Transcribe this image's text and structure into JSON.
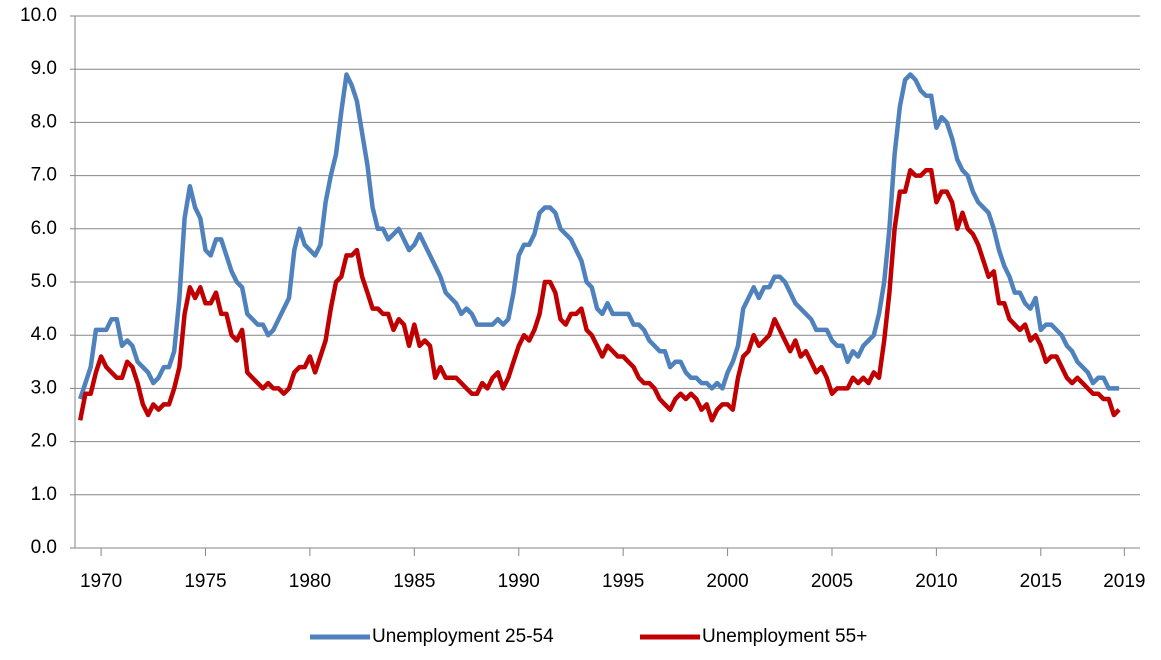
{
  "chart_data": {
    "type": "line",
    "x": [
      1969,
      1969.25,
      1969.5,
      1969.75,
      1970,
      1970.25,
      1970.5,
      1970.75,
      1971,
      1971.25,
      1971.5,
      1971.75,
      1972,
      1972.25,
      1972.5,
      1972.75,
      1973,
      1973.25,
      1973.5,
      1973.75,
      1974,
      1974.25,
      1974.5,
      1974.75,
      1975,
      1975.25,
      1975.5,
      1975.75,
      1976,
      1976.25,
      1976.5,
      1976.75,
      1977,
      1977.25,
      1977.5,
      1977.75,
      1978,
      1978.25,
      1978.5,
      1978.75,
      1979,
      1979.25,
      1979.5,
      1979.75,
      1980,
      1980.25,
      1980.5,
      1980.75,
      1981,
      1981.25,
      1981.5,
      1981.75,
      1982,
      1982.25,
      1982.5,
      1982.75,
      1983,
      1983.25,
      1983.5,
      1983.75,
      1984,
      1984.25,
      1984.5,
      1984.75,
      1985,
      1985.25,
      1985.5,
      1985.75,
      1986,
      1986.25,
      1986.5,
      1986.75,
      1987,
      1987.25,
      1987.5,
      1987.75,
      1988,
      1988.25,
      1988.5,
      1988.75,
      1989,
      1989.25,
      1989.5,
      1989.75,
      1990,
      1990.25,
      1990.5,
      1990.75,
      1991,
      1991.25,
      1991.5,
      1991.75,
      1992,
      1992.25,
      1992.5,
      1992.75,
      1993,
      1993.25,
      1993.5,
      1993.75,
      1994,
      1994.25,
      1994.5,
      1994.75,
      1995,
      1995.25,
      1995.5,
      1995.75,
      1996,
      1996.25,
      1996.5,
      1996.75,
      1997,
      1997.25,
      1997.5,
      1997.75,
      1998,
      1998.25,
      1998.5,
      1998.75,
      1999,
      1999.25,
      1999.5,
      1999.75,
      2000,
      2000.25,
      2000.5,
      2000.75,
      2001,
      2001.25,
      2001.5,
      2001.75,
      2002,
      2002.25,
      2002.5,
      2002.75,
      2003,
      2003.25,
      2003.5,
      2003.75,
      2004,
      2004.25,
      2004.5,
      2004.75,
      2005,
      2005.25,
      2005.5,
      2005.75,
      2006,
      2006.25,
      2006.5,
      2006.75,
      2007,
      2007.25,
      2007.5,
      2007.75,
      2008,
      2008.25,
      2008.5,
      2008.75,
      2009,
      2009.25,
      2009.5,
      2009.75,
      2010,
      2010.25,
      2010.5,
      2010.75,
      2011,
      2011.25,
      2011.5,
      2011.75,
      2012,
      2012.25,
      2012.5,
      2012.75,
      2013,
      2013.25,
      2013.5,
      2013.75,
      2014,
      2014.25,
      2014.5,
      2014.75,
      2015,
      2015.25,
      2015.5,
      2015.75,
      2016,
      2016.25,
      2016.5,
      2016.75,
      2017,
      2017.25,
      2017.5,
      2017.75,
      2018,
      2018.25,
      2018.5,
      2018.75
    ],
    "series": [
      {
        "name": "Unemployment 25-54",
        "color": "#4f81bd",
        "values": [
          2.8,
          3.1,
          3.4,
          4.1,
          4.1,
          4.1,
          4.3,
          4.3,
          3.8,
          3.9,
          3.8,
          3.5,
          3.4,
          3.3,
          3.1,
          3.2,
          3.4,
          3.4,
          3.7,
          4.7,
          6.2,
          6.8,
          6.4,
          6.2,
          5.6,
          5.5,
          5.8,
          5.8,
          5.5,
          5.2,
          5.0,
          4.9,
          4.4,
          4.3,
          4.2,
          4.2,
          4.0,
          4.1,
          4.3,
          4.5,
          4.7,
          5.6,
          6.0,
          5.7,
          5.6,
          5.5,
          5.7,
          6.5,
          7.0,
          7.4,
          8.2,
          8.9,
          8.7,
          8.4,
          7.8,
          7.2,
          6.4,
          6.0,
          6.0,
          5.8,
          5.9,
          6.0,
          5.8,
          5.6,
          5.7,
          5.9,
          5.7,
          5.5,
          5.3,
          5.1,
          4.8,
          4.7,
          4.6,
          4.4,
          4.5,
          4.4,
          4.2,
          4.2,
          4.2,
          4.2,
          4.3,
          4.2,
          4.3,
          4.8,
          5.5,
          5.7,
          5.7,
          5.9,
          6.3,
          6.4,
          6.4,
          6.3,
          6.0,
          5.9,
          5.8,
          5.6,
          5.4,
          5.0,
          4.9,
          4.5,
          4.4,
          4.6,
          4.4,
          4.4,
          4.4,
          4.4,
          4.2,
          4.2,
          4.1,
          3.9,
          3.8,
          3.7,
          3.7,
          3.4,
          3.5,
          3.5,
          3.3,
          3.2,
          3.2,
          3.1,
          3.1,
          3.0,
          3.1,
          3.0,
          3.3,
          3.5,
          3.8,
          4.5,
          4.7,
          4.9,
          4.7,
          4.9,
          4.9,
          5.1,
          5.1,
          5.0,
          4.8,
          4.6,
          4.5,
          4.4,
          4.3,
          4.1,
          4.1,
          4.1,
          3.9,
          3.8,
          3.8,
          3.5,
          3.7,
          3.6,
          3.8,
          3.9,
          4.0,
          4.4,
          5.0,
          6.0,
          7.4,
          8.3,
          8.8,
          8.9,
          8.8,
          8.6,
          8.5,
          8.5,
          7.9,
          8.1,
          8.0,
          7.7,
          7.3,
          7.1,
          7.0,
          6.7,
          6.5,
          6.4,
          6.3,
          6.0,
          5.6,
          5.3,
          5.1,
          4.8,
          4.8,
          4.6,
          4.5,
          4.7,
          4.1,
          4.2,
          4.2,
          4.1,
          4.0,
          3.8,
          3.7,
          3.5,
          3.4,
          3.3,
          3.1,
          3.2,
          3.2,
          3.0,
          3.0,
          3.0
        ]
      },
      {
        "name": "Unemployment 55+",
        "color": "#c00000",
        "values": [
          2.4,
          2.9,
          2.9,
          3.3,
          3.6,
          3.4,
          3.3,
          3.2,
          3.2,
          3.5,
          3.4,
          3.1,
          2.7,
          2.5,
          2.7,
          2.6,
          2.7,
          2.7,
          3.0,
          3.4,
          4.4,
          4.9,
          4.7,
          4.9,
          4.6,
          4.6,
          4.8,
          4.4,
          4.4,
          4.0,
          3.9,
          4.1,
          3.3,
          3.2,
          3.1,
          3.0,
          3.1,
          3.0,
          3.0,
          2.9,
          3.0,
          3.3,
          3.4,
          3.4,
          3.6,
          3.3,
          3.6,
          3.9,
          4.5,
          5.0,
          5.1,
          5.5,
          5.5,
          5.6,
          5.1,
          4.8,
          4.5,
          4.5,
          4.4,
          4.4,
          4.1,
          4.3,
          4.2,
          3.8,
          4.2,
          3.8,
          3.9,
          3.8,
          3.2,
          3.4,
          3.2,
          3.2,
          3.2,
          3.1,
          3.0,
          2.9,
          2.9,
          3.1,
          3.0,
          3.2,
          3.3,
          3.0,
          3.2,
          3.5,
          3.8,
          4.0,
          3.9,
          4.1,
          4.4,
          5.0,
          5.0,
          4.8,
          4.3,
          4.2,
          4.4,
          4.4,
          4.5,
          4.1,
          4.0,
          3.8,
          3.6,
          3.8,
          3.7,
          3.6,
          3.6,
          3.5,
          3.4,
          3.2,
          3.1,
          3.1,
          3.0,
          2.8,
          2.7,
          2.6,
          2.8,
          2.9,
          2.8,
          2.9,
          2.8,
          2.6,
          2.7,
          2.4,
          2.6,
          2.7,
          2.7,
          2.6,
          3.2,
          3.6,
          3.7,
          4.0,
          3.8,
          3.9,
          4.0,
          4.3,
          4.1,
          3.9,
          3.7,
          3.9,
          3.6,
          3.7,
          3.5,
          3.3,
          3.4,
          3.2,
          2.9,
          3.0,
          3.0,
          3.0,
          3.2,
          3.1,
          3.2,
          3.1,
          3.3,
          3.2,
          3.9,
          4.8,
          6.0,
          6.7,
          6.7,
          7.1,
          7.0,
          7.0,
          7.1,
          7.1,
          6.5,
          6.7,
          6.7,
          6.5,
          6.0,
          6.3,
          6.0,
          5.9,
          5.7,
          5.4,
          5.1,
          5.2,
          4.6,
          4.6,
          4.3,
          4.2,
          4.1,
          4.2,
          3.9,
          4.0,
          3.8,
          3.5,
          3.6,
          3.6,
          3.4,
          3.2,
          3.1,
          3.2,
          3.1,
          3.0,
          2.9,
          2.9,
          2.8,
          2.8,
          2.5,
          2.6
        ]
      }
    ],
    "xlim": [
      1968.75,
      2019.75
    ],
    "xticks": [
      1970,
      1975,
      1980,
      1985,
      1990,
      1995,
      2000,
      2005,
      2010,
      2015,
      2019
    ],
    "ylim": [
      0,
      10
    ],
    "yticks": [
      {
        "value": 0,
        "label": "0.0"
      },
      {
        "value": 1,
        "label": "1.0"
      },
      {
        "value": 2,
        "label": "2.0"
      },
      {
        "value": 3,
        "label": "3.0"
      },
      {
        "value": 4,
        "label": "4.0"
      },
      {
        "value": 5,
        "label": "5.0"
      },
      {
        "value": 6,
        "label": "6.0"
      },
      {
        "value": 7,
        "label": "7.0"
      },
      {
        "value": 8,
        "label": "8.0"
      },
      {
        "value": 9,
        "label": "9.0"
      },
      {
        "value": 10,
        "label": "10.0"
      }
    ],
    "grid": true,
    "legend": "bottom"
  }
}
